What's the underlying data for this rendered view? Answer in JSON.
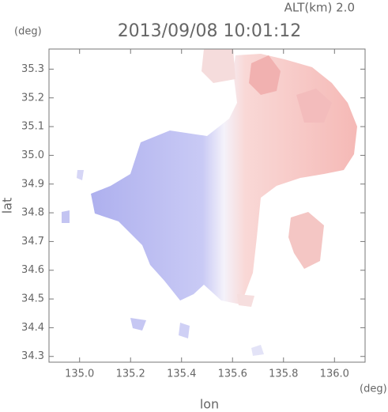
{
  "chart_data": {
    "type": "map",
    "title": "2013/09/08 10:01:12",
    "altitude_label": "ALT(km) 2.0",
    "y_unit": "(deg)",
    "x_unit": "(deg)",
    "xlabel": "lon",
    "ylabel": "lat",
    "xlim": [
      134.88,
      136.12
    ],
    "ylim": [
      34.28,
      35.37
    ],
    "xticks": [
      {
        "value": 135,
        "label": "135.0"
      },
      135.2,
      135.4,
      135.6,
      135.8,
      {
        "value": 136,
        "label": "136.0"
      }
    ],
    "yticks": [
      34.3,
      34.4,
      34.5,
      34.6,
      34.7,
      34.8,
      34.9,
      {
        "value": 35,
        "label": "35.0"
      },
      35.1,
      35.2,
      35.3
    ]
  }
}
